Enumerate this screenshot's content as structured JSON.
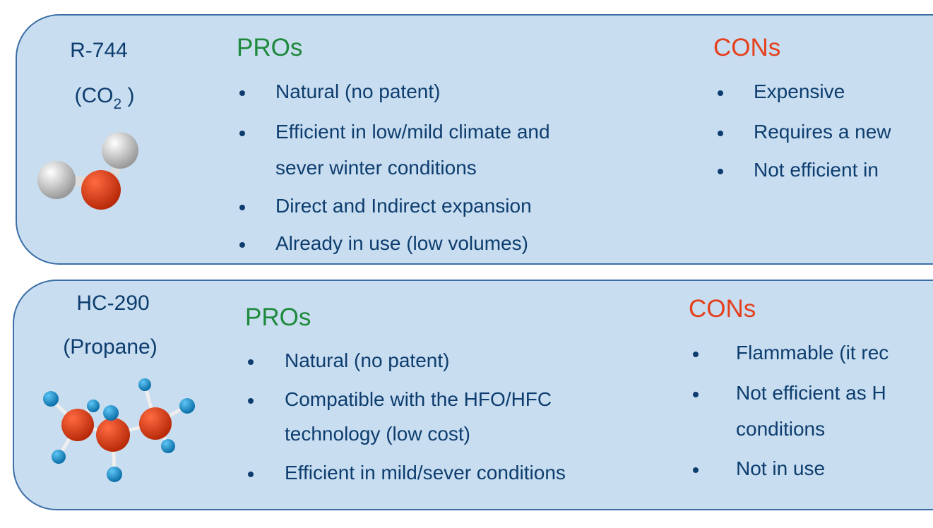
{
  "panels": [
    {
      "name": "R-744",
      "formula_main": "(CO",
      "formula_sub": "2",
      "formula_end": " )",
      "molecule_icon": "water-molecule-model",
      "pros_title": "PROs",
      "pros": [
        "Natural (no patent)",
        "Efficient in low/mild climate and",
        "sever winter conditions",
        "Direct and Indirect expansion",
        "Already in use (low volumes)"
      ],
      "cons_title": "CONs",
      "cons": [
        "Expensive",
        "Requires a new",
        "Not efficient in"
      ]
    },
    {
      "name": "HC-290",
      "formula": "(Propane)",
      "molecule_icon": "propane-molecule-model",
      "pros_title": "PROs",
      "pros": [
        "Natural (no patent)",
        "Compatible with the HFO/HFC",
        "technology (low cost)",
        "Efficient in mild/sever conditions"
      ],
      "cons_title": "CONs",
      "cons": [
        "Flammable (it rec",
        "Not efficient as H",
        "conditions",
        "Not in use"
      ]
    }
  ],
  "colors": {
    "panel_bg": "#c8ddf0",
    "border": "#3b6ea5",
    "text": "#0d3d6e",
    "pros": "#1d8a3c",
    "cons": "#e5401d",
    "atom_red": "#e8401c",
    "atom_white": "#f0f0f0",
    "atom_blue": "#1a9ad6"
  }
}
